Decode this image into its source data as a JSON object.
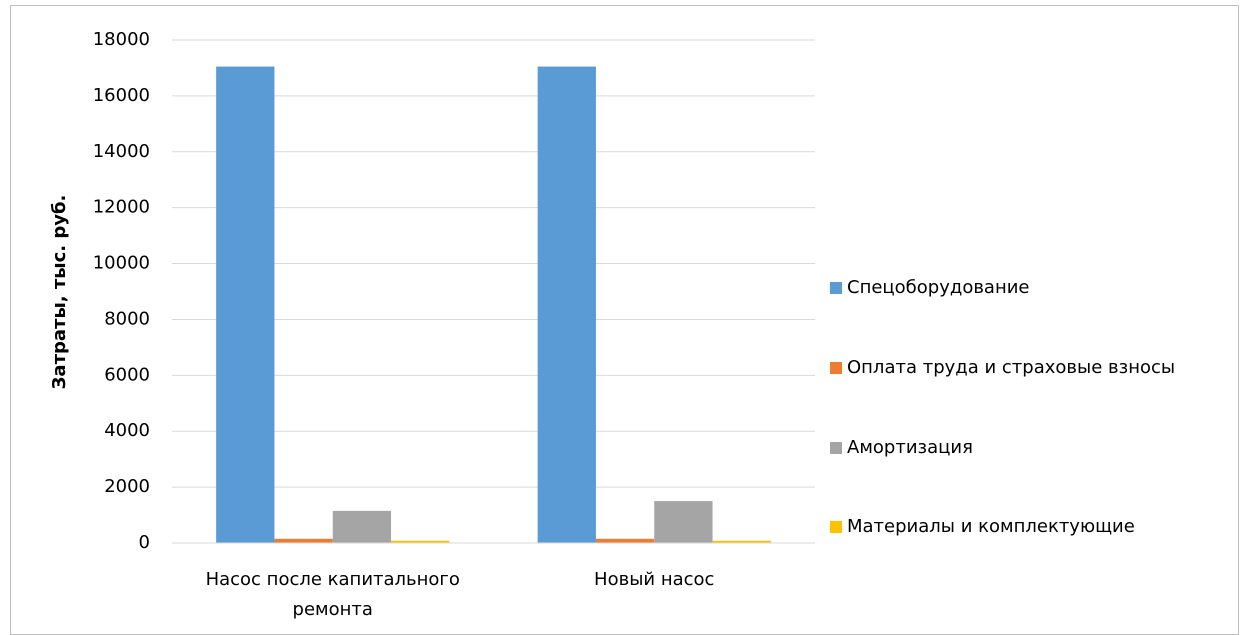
{
  "chart_data": {
    "type": "bar",
    "y_label": "Затраты, тыс. руб.",
    "categories": [
      "Насос после капитального ремонта",
      "Новый насос"
    ],
    "series": [
      {
        "name": "Спецоборудование",
        "color": "#5b9bd5",
        "values": [
          17050,
          17050
        ]
      },
      {
        "name": "Оплата труда и страховые взносы",
        "color": "#ed7d31",
        "values": [
          150,
          150
        ]
      },
      {
        "name": "Амортизация",
        "color": "#a5a5a5",
        "values": [
          1150,
          1500
        ]
      },
      {
        "name": "Материалы и комплектующие",
        "color": "#ffc000",
        "values": [
          80,
          80
        ]
      }
    ],
    "ylim": [
      0,
      18000
    ],
    "yticks": [
      0,
      2000,
      4000,
      6000,
      8000,
      10000,
      12000,
      14000,
      16000,
      18000
    ],
    "grid": true,
    "legend": "right"
  }
}
